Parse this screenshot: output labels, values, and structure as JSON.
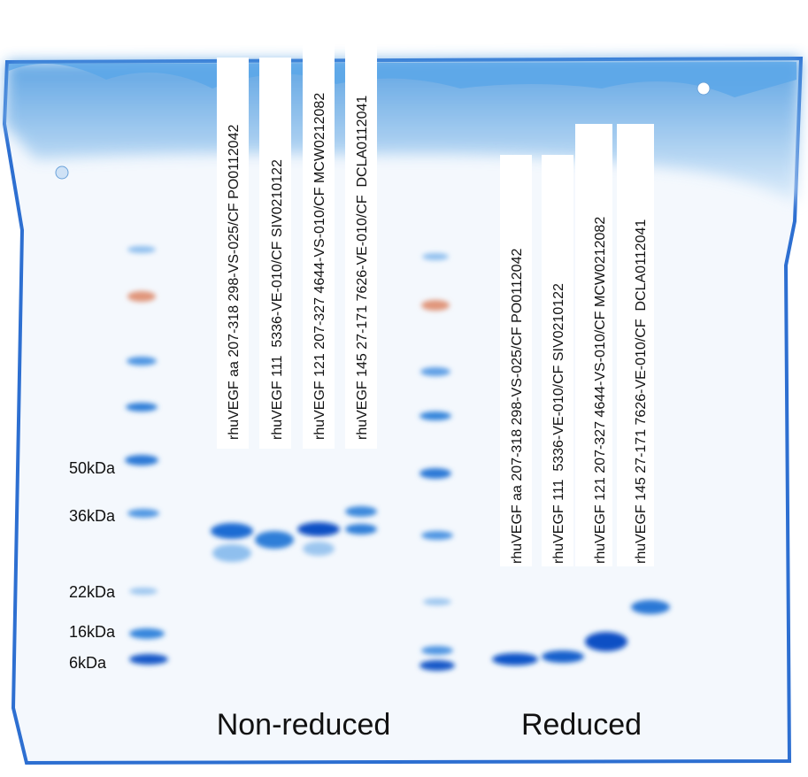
{
  "markers": [
    "50kDa",
    "36kDa",
    "22kDa",
    "16kDa",
    "6kDa"
  ],
  "lanes": {
    "non_reduced": [
      "rhuVEGF aa 207-318 298-VS-025/CF PO0112042",
      "rhuVEGF 111  5336-VE-010/CF SIV0210122",
      "rhuVEGF 121 207-327 4644-VS-010/CF MCW0212082",
      "rhuVEGF 145 27-171 7626-VE-010/CF  DCLA0112041"
    ],
    "reduced": [
      "rhuVEGF aa 207-318 298-VS-025/CF PO0112042",
      "rhuVEGF 111  5336-VE-010/CF SIV0210122",
      "rhuVEGF 121 207-327 4644-VS-010/CF MCW0212082",
      "rhuVEGF 145 27-171 7626-VE-010/CF  DCLA0112041"
    ]
  },
  "groups": {
    "non_reduced": "Non-reduced",
    "reduced": "Reduced"
  }
}
